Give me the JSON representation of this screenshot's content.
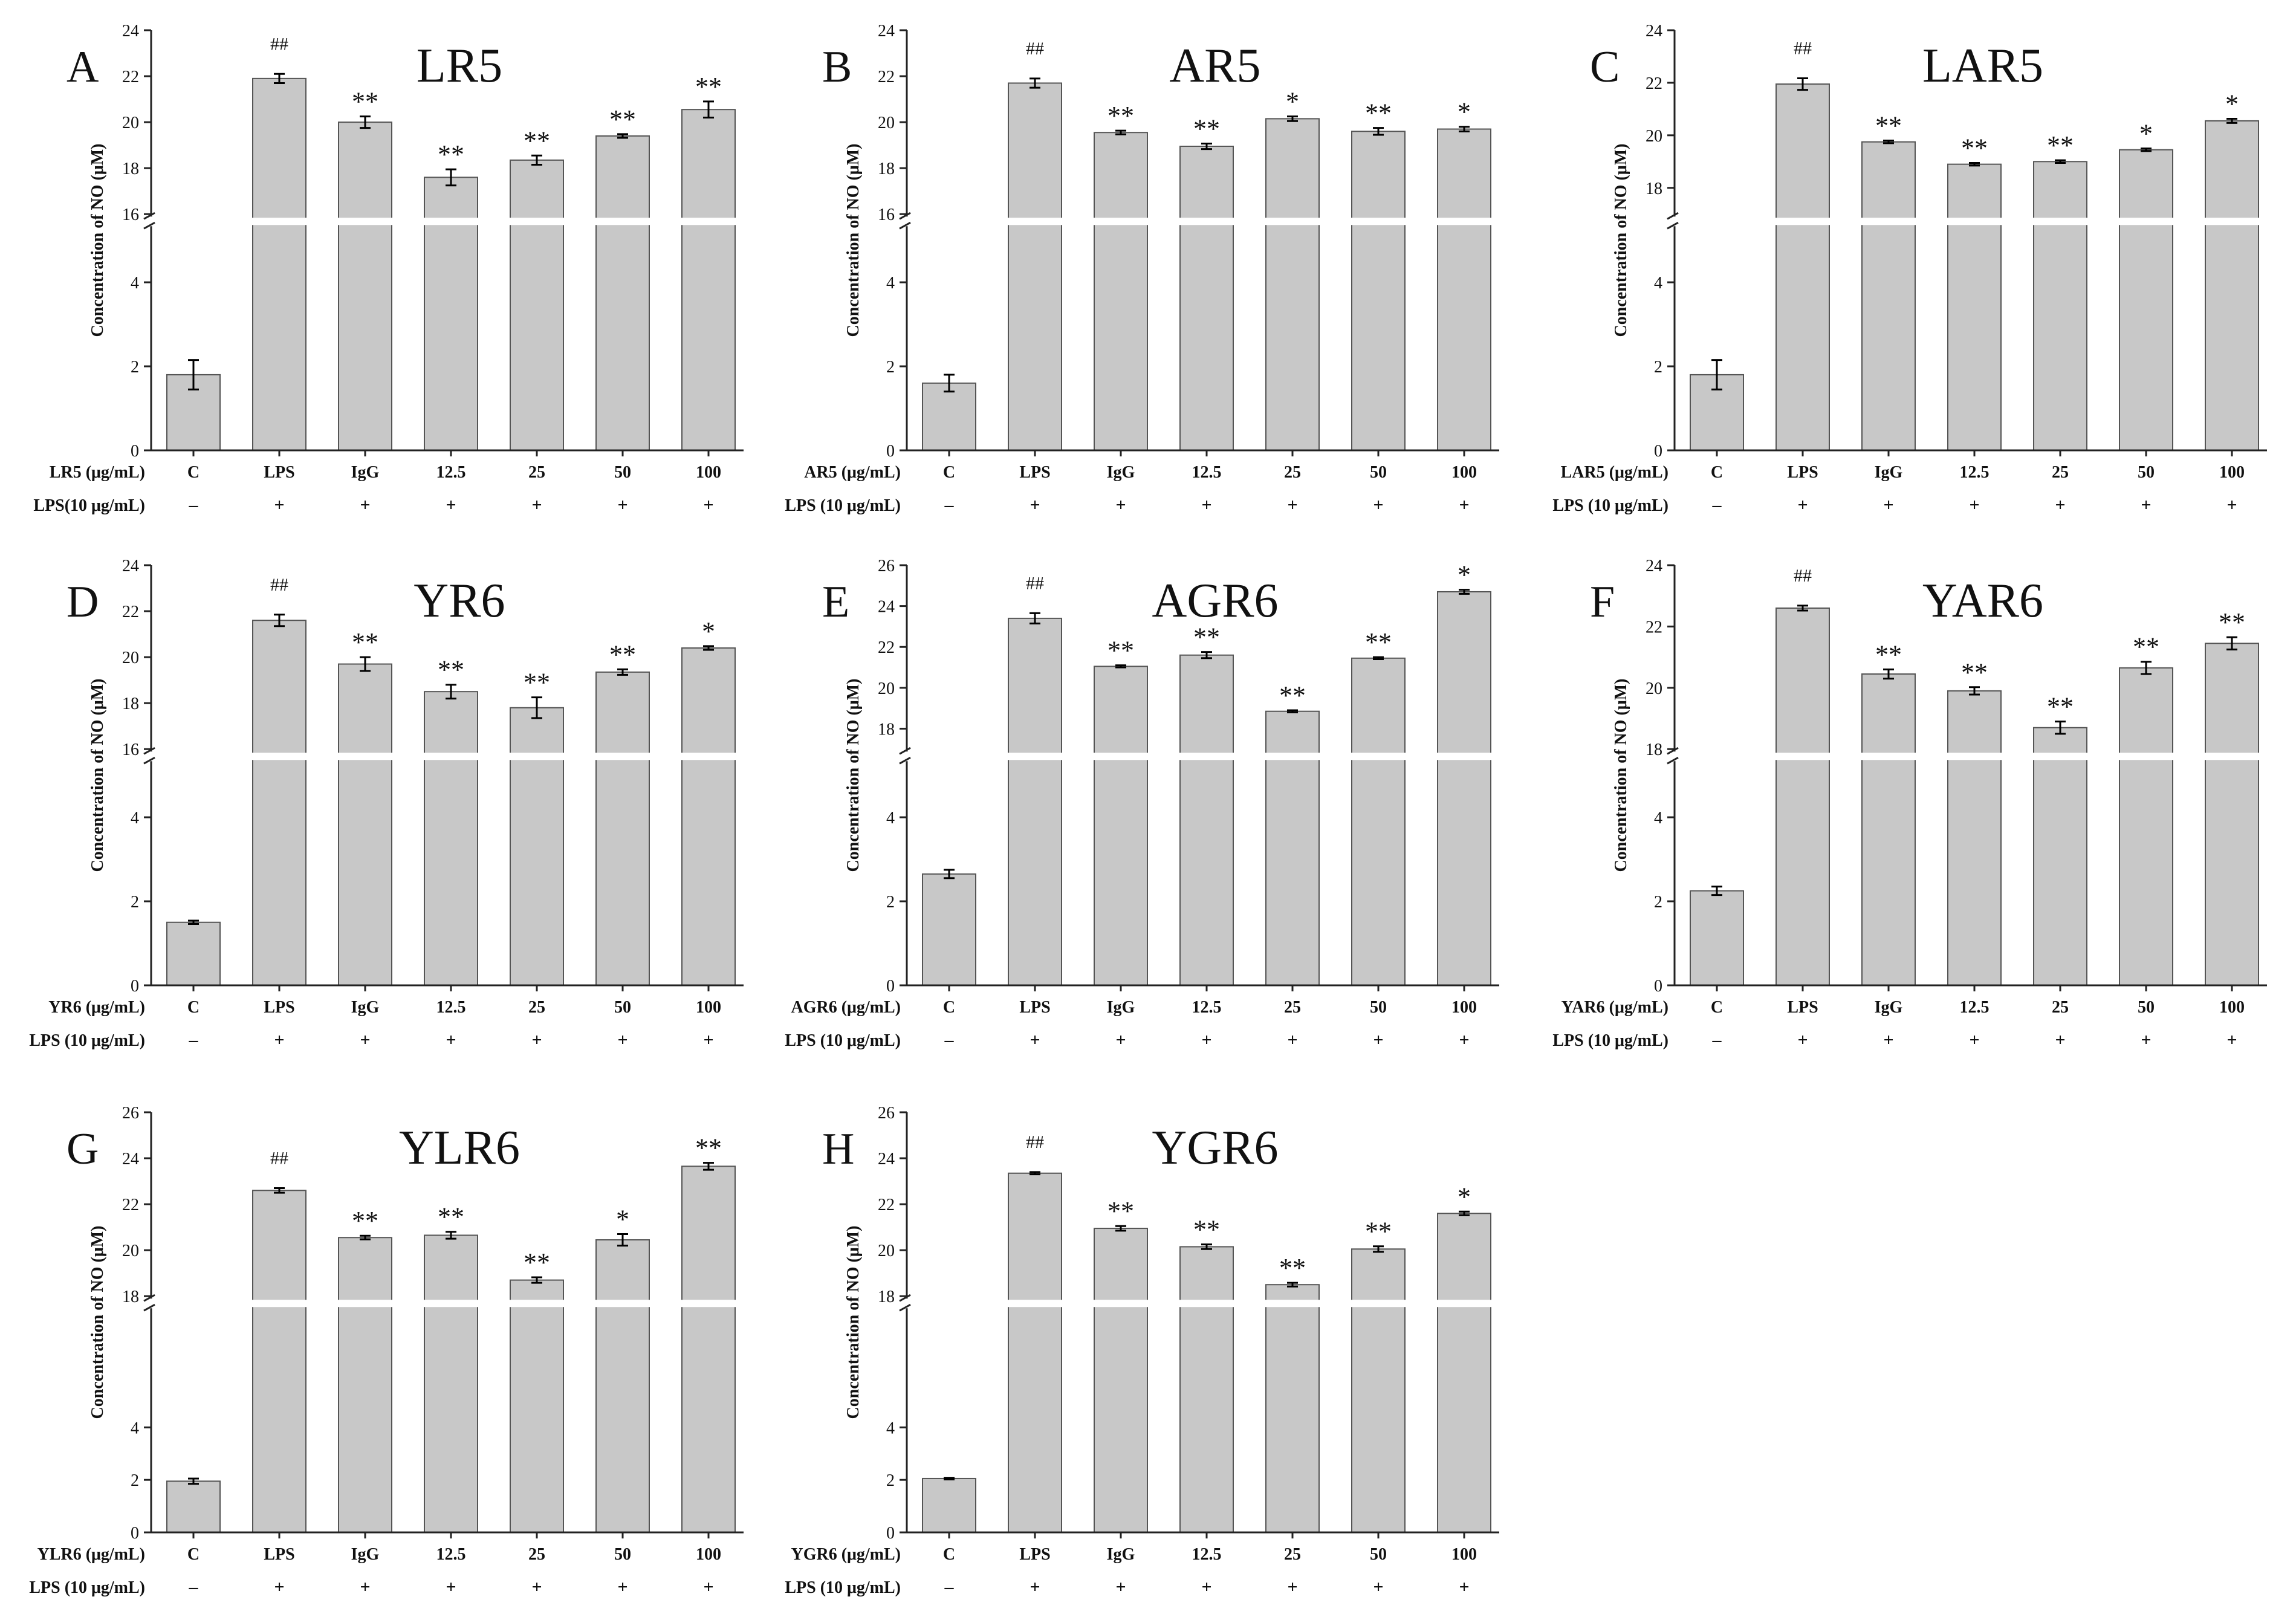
{
  "colors": {
    "bar_fill": "#c8c8c8",
    "bar_stroke": "#555555",
    "axis": "#222222",
    "break_gap": "#ffffff"
  },
  "chart_data": [
    {
      "type": "bar",
      "panel_letter": "A",
      "title": "LR5",
      "ylabel": "Concentration of NO (μM)",
      "row1_label": "LR5 (μg/mL)",
      "row2_label": "LPS(10 μg/mL)",
      "categories": [
        "C",
        "LPS",
        "IgG",
        "12.5",
        "25",
        "50",
        "100"
      ],
      "lps_signs": [
        "–",
        "+",
        "+",
        "+",
        "+",
        "+",
        "+"
      ],
      "values": [
        1.8,
        21.9,
        20.0,
        17.6,
        18.35,
        19.4,
        20.55
      ],
      "errors": [
        0.35,
        0.2,
        0.25,
        0.35,
        0.2,
        0.08,
        0.35
      ],
      "annotations": [
        "",
        "##",
        "**",
        "**",
        "**",
        "**",
        "**"
      ],
      "y_break": [
        5,
        16
      ],
      "lower_ticks": [
        0,
        2,
        4
      ],
      "upper_ticks": [
        16,
        18,
        20,
        22,
        24
      ],
      "ylim": [
        0,
        24
      ]
    },
    {
      "type": "bar",
      "panel_letter": "B",
      "title": "AR5",
      "ylabel": "Concentration of NO (μM)",
      "row1_label": "AR5 (μg/mL)",
      "row2_label": "LPS (10 μg/mL)",
      "categories": [
        "C",
        "LPS",
        "IgG",
        "12.5",
        "25",
        "50",
        "100"
      ],
      "lps_signs": [
        "–",
        "+",
        "+",
        "+",
        "+",
        "+",
        "+"
      ],
      "values": [
        1.6,
        21.7,
        19.55,
        18.95,
        20.15,
        19.6,
        19.7
      ],
      "errors": [
        0.2,
        0.2,
        0.08,
        0.12,
        0.1,
        0.15,
        0.1
      ],
      "annotations": [
        "",
        "##",
        "**",
        "**",
        "*",
        "**",
        "*"
      ],
      "y_break": [
        5,
        16
      ],
      "lower_ticks": [
        0,
        2,
        4
      ],
      "upper_ticks": [
        16,
        18,
        20,
        22,
        24
      ],
      "ylim": [
        0,
        24
      ]
    },
    {
      "type": "bar",
      "panel_letter": "C",
      "title": "LAR5",
      "ylabel": "Concentration of NO (μM)",
      "row1_label": "LAR5 (μg/mL)",
      "row2_label": "LPS (10 μg/mL)",
      "categories": [
        "C",
        "LPS",
        "IgG",
        "12.5",
        "25",
        "50",
        "100"
      ],
      "lps_signs": [
        "–",
        "+",
        "+",
        "+",
        "+",
        "+",
        "+"
      ],
      "values": [
        1.8,
        21.95,
        19.75,
        18.9,
        19.0,
        19.45,
        20.55
      ],
      "errors": [
        0.35,
        0.22,
        0.05,
        0.05,
        0.05,
        0.05,
        0.08
      ],
      "annotations": [
        "",
        "##",
        "**",
        "**",
        "**",
        "*",
        "*"
      ],
      "y_break": [
        5,
        17
      ],
      "lower_ticks": [
        0,
        2,
        4
      ],
      "upper_ticks": [
        18,
        20,
        22,
        24
      ],
      "ylim": [
        0,
        24
      ]
    },
    {
      "type": "bar",
      "panel_letter": "D",
      "title": "YR6",
      "ylabel": "Concentration of NO (μM)",
      "row1_label": "YR6 (μg/mL)",
      "row2_label": "LPS (10 μg/mL)",
      "categories": [
        "C",
        "LPS",
        "IgG",
        "12.5",
        "25",
        "50",
        "100"
      ],
      "lps_signs": [
        "–",
        "+",
        "+",
        "+",
        "+",
        "+",
        "+"
      ],
      "values": [
        1.5,
        21.6,
        19.7,
        18.5,
        17.8,
        19.35,
        20.4
      ],
      "errors": [
        0.04,
        0.25,
        0.3,
        0.3,
        0.45,
        0.12,
        0.08
      ],
      "annotations": [
        "",
        "##",
        "**",
        "**",
        "**",
        "**",
        "*"
      ],
      "y_break": [
        5,
        16
      ],
      "lower_ticks": [
        0,
        2,
        4
      ],
      "upper_ticks": [
        16,
        18,
        20,
        22,
        24
      ],
      "ylim": [
        0,
        24
      ]
    },
    {
      "type": "bar",
      "panel_letter": "E",
      "title": "AGR6",
      "ylabel": "Concentration of NO (μM)",
      "row1_label": "AGR6 (μg/mL)",
      "row2_label": "LPS (10 μg/mL)",
      "categories": [
        "C",
        "LPS",
        "IgG",
        "12.5",
        "25",
        "50",
        "100"
      ],
      "lps_signs": [
        "–",
        "+",
        "+",
        "+",
        "+",
        "+",
        "+"
      ],
      "values": [
        2.65,
        23.4,
        21.05,
        21.6,
        18.85,
        21.45,
        24.7
      ],
      "errors": [
        0.1,
        0.25,
        0.05,
        0.15,
        0.05,
        0.05,
        0.1
      ],
      "annotations": [
        "",
        "##",
        "**",
        "**",
        "**",
        "**",
        "*"
      ],
      "y_break": [
        5,
        17
      ],
      "lower_ticks": [
        0,
        2,
        4
      ],
      "upper_ticks": [
        18,
        20,
        22,
        24,
        26
      ],
      "ylim": [
        0,
        26
      ]
    },
    {
      "type": "bar",
      "panel_letter": "F",
      "title": "YAR6",
      "ylabel": "Concentration of NO (μM)",
      "row1_label": "YAR6 (μg/mL)",
      "row2_label": "LPS (10 μg/mL)",
      "categories": [
        "C",
        "LPS",
        "IgG",
        "12.5",
        "25",
        "50",
        "100"
      ],
      "lps_signs": [
        "–",
        "+",
        "+",
        "+",
        "+",
        "+",
        "+"
      ],
      "values": [
        2.25,
        22.6,
        20.45,
        19.9,
        18.7,
        20.65,
        21.45
      ],
      "errors": [
        0.1,
        0.08,
        0.15,
        0.12,
        0.2,
        0.2,
        0.2
      ],
      "annotations": [
        "",
        "##",
        "**",
        "**",
        "**",
        "**",
        "**"
      ],
      "y_break": [
        5,
        18
      ],
      "lower_ticks": [
        0,
        2,
        4
      ],
      "upper_ticks": [
        18,
        20,
        22,
        24
      ],
      "ylim": [
        0,
        24
      ]
    },
    {
      "type": "bar",
      "panel_letter": "G",
      "title": "YLR6",
      "ylabel": "Concentration of NO (μM)",
      "row1_label": "YLR6 (μg/mL)",
      "row2_label": "LPS (10 μg/mL)",
      "categories": [
        "C",
        "LPS",
        "IgG",
        "12.5",
        "25",
        "50",
        "100"
      ],
      "lps_signs": [
        "–",
        "+",
        "+",
        "+",
        "+",
        "+",
        "+"
      ],
      "values": [
        1.95,
        22.6,
        20.55,
        20.65,
        18.7,
        20.45,
        23.65
      ],
      "errors": [
        0.1,
        0.1,
        0.08,
        0.15,
        0.12,
        0.25,
        0.15
      ],
      "annotations": [
        "",
        "##",
        "**",
        "**",
        "**",
        "*",
        "**"
      ],
      "y_break": [
        8,
        18
      ],
      "lower_ticks": [
        0,
        2,
        4
      ],
      "upper_ticks": [
        18,
        20,
        22,
        24,
        26
      ],
      "ylim": [
        0,
        26
      ]
    },
    {
      "type": "bar",
      "panel_letter": "H",
      "title": "YGR6",
      "ylabel": "Concentration of NO (μM)",
      "row1_label": "YGR6 (μg/mL)",
      "row2_label": "LPS (10 μg/mL)",
      "categories": [
        "C",
        "LPS",
        "IgG",
        "12.5",
        "25",
        "50",
        "100"
      ],
      "lps_signs": [
        "–",
        "+",
        "+",
        "+",
        "+",
        "+",
        "+"
      ],
      "values": [
        2.05,
        23.35,
        20.95,
        20.15,
        18.5,
        20.05,
        21.6
      ],
      "errors": [
        0.03,
        0.05,
        0.1,
        0.1,
        0.08,
        0.12,
        0.08
      ],
      "annotations": [
        "",
        "##",
        "**",
        "**",
        "**",
        "**",
        "*"
      ],
      "y_break": [
        8,
        18
      ],
      "lower_ticks": [
        0,
        2,
        4
      ],
      "upper_ticks": [
        18,
        20,
        22,
        24,
        26
      ],
      "ylim": [
        0,
        26
      ]
    }
  ]
}
